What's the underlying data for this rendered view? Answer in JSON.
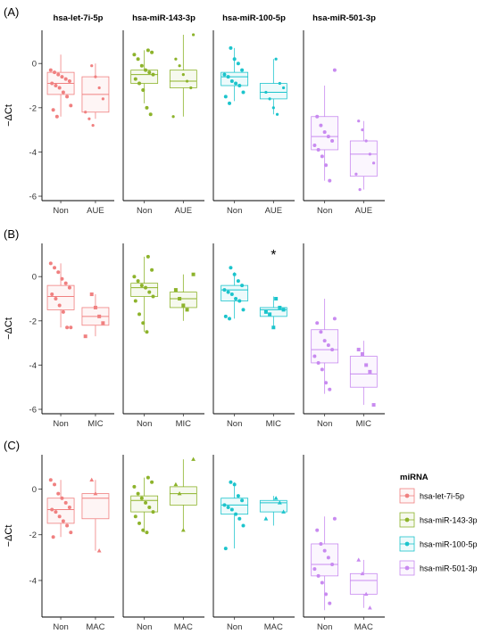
{
  "chart_data": {
    "type": "box",
    "facets": [
      "hsa-let-7i-5p",
      "hsa-miR-143-3p",
      "hsa-miR-100-5p",
      "hsa-miR-501-3p"
    ],
    "colors": {
      "hsa-let-7i-5p": "#F08080",
      "hsa-miR-143-3p": "#8DB32B",
      "hsa-miR-100-5p": "#1CC4CC",
      "hsa-miR-501-3p": "#C88AF0"
    },
    "ylabel": "−ΔCt",
    "legend": {
      "title": "miRNA",
      "entries": [
        "hsa-let-7i-5p",
        "hsa-miR-143-3p",
        "hsa-miR-100-5p",
        "hsa-miR-501-3p"
      ],
      "placement": "right"
    },
    "panels": [
      {
        "label": "(A)",
        "categories": [
          "Non",
          "AUE"
        ],
        "ylim": [
          -6.2,
          1.5
        ],
        "yticks": [
          0,
          -2,
          -4,
          -6
        ],
        "show_facet_titles": true,
        "groups": {
          "hsa-let-7i-5p": {
            "Non": {
              "stats": [
                -2.4,
                -1.4,
                -0.9,
                -0.4,
                0.4
              ],
              "points": [
                -0.3,
                -0.4,
                -0.5,
                -0.6,
                -0.7,
                -0.8,
                -0.9,
                -1.0,
                -1.1,
                -1.3,
                -1.5,
                -1.9,
                -2.1,
                -2.4
              ]
            },
            "AUE": {
              "stats": [
                -2.5,
                -2.2,
                -1.4,
                -0.6,
                0.0
              ],
              "points": [
                -0.1,
                -0.6,
                -1.1,
                -1.6,
                -2.2,
                -2.5,
                -2.8
              ]
            }
          },
          "hsa-miR-143-3p": {
            "Non": {
              "stats": [
                -1.8,
                -0.9,
                -0.5,
                -0.3,
                0.6
              ],
              "points": [
                0.6,
                0.5,
                0.4,
                0.2,
                -0.1,
                -0.3,
                -0.4,
                -0.5,
                -0.7,
                -0.9,
                -1.2,
                -2.0,
                -2.3
              ]
            },
            "AUE": {
              "stats": [
                -2.4,
                -1.1,
                -0.8,
                -0.3,
                1.3
              ],
              "points": [
                1.3,
                0.2,
                -0.1,
                -0.5,
                -0.8,
                -1.1,
                -2.4
              ]
            }
          },
          "hsa-miR-100-5p": {
            "Non": {
              "stats": [
                -1.7,
                -1.0,
                -0.6,
                -0.4,
                0.7
              ],
              "points": [
                0.7,
                0.2,
                0.0,
                -0.3,
                -0.5,
                -0.6,
                -0.8,
                -0.9,
                -1.0,
                -1.3,
                -1.5,
                -1.8
              ]
            },
            "AUE": {
              "stats": [
                -2.3,
                -1.6,
                -1.3,
                -0.9,
                0.2
              ],
              "points": [
                0.2,
                -0.9,
                -1.1,
                -1.3,
                -1.6,
                -2.0,
                -2.3
              ]
            }
          },
          "hsa-miR-501-3p": {
            "Non": {
              "stats": [
                -5.3,
                -3.9,
                -3.3,
                -2.4,
                -1.0
              ],
              "points": [
                -0.3,
                -2.4,
                -2.8,
                -3.1,
                -3.3,
                -3.5,
                -3.7,
                -3.9,
                -4.2,
                -4.6,
                -5.3
              ]
            },
            "AUE": {
              "stats": [
                -5.7,
                -5.1,
                -4.1,
                -3.5,
                -2.6
              ],
              "points": [
                -2.6,
                -3.0,
                -3.5,
                -4.1,
                -4.5,
                -5.0,
                -5.7
              ]
            }
          }
        }
      },
      {
        "label": "(B)",
        "categories": [
          "Non",
          "MIC"
        ],
        "ylim": [
          -6.2,
          1.5
        ],
        "yticks": [
          0,
          -2,
          -4,
          -6
        ],
        "show_facet_titles": false,
        "significance": {
          "facet": "hsa-miR-100-5p",
          "text": "*"
        },
        "groups": {
          "hsa-let-7i-5p": {
            "Non": {
              "stats": [
                -2.3,
                -1.5,
                -0.9,
                -0.4,
                0.6
              ],
              "points": [
                0.6,
                0.4,
                0.2,
                -0.1,
                -0.3,
                -0.5,
                -0.8,
                -1.0,
                -1.3,
                -1.6,
                -2.3,
                -2.3
              ]
            },
            "MIC": {
              "stats": [
                -2.7,
                -2.2,
                -1.8,
                -1.4,
                -0.8
              ],
              "points": [
                -0.8,
                -1.4,
                -1.8,
                -2.1,
                -2.7
              ]
            }
          },
          "hsa-miR-143-3p": {
            "Non": {
              "stats": [
                -2.5,
                -0.9,
                -0.5,
                -0.3,
                0.9
              ],
              "points": [
                0.9,
                0.3,
                0.0,
                -0.2,
                -0.4,
                -0.5,
                -0.7,
                -0.9,
                -1.1,
                -1.7,
                -2.1,
                -2.5
              ]
            },
            "MIC": {
              "stats": [
                -2.0,
                -1.4,
                -1.0,
                -0.7,
                0.1
              ],
              "points": [
                0.1,
                -0.6,
                -1.0,
                -1.3,
                -1.5
              ]
            }
          },
          "hsa-miR-100-5p": {
            "Non": {
              "stats": [
                -1.9,
                -1.1,
                -0.6,
                -0.4,
                0.2
              ],
              "points": [
                0.4,
                0.1,
                -0.2,
                -0.4,
                -0.6,
                -0.7,
                -0.8,
                -1.0,
                -1.1,
                -1.5,
                -1.8,
                -1.9
              ]
            },
            "MIC": {
              "stats": [
                -2.3,
                -1.8,
                -1.5,
                -1.4,
                -0.9
              ],
              "points": [
                -1.0,
                -1.4,
                -1.5,
                -1.6,
                -1.7,
                -2.3
              ]
            }
          },
          "hsa-miR-501-3p": {
            "Non": {
              "stats": [
                -5.3,
                -3.9,
                -3.3,
                -2.4,
                -1.0
              ],
              "points": [
                -1.9,
                -2.1,
                -2.5,
                -2.9,
                -3.1,
                -3.3,
                -3.6,
                -3.9,
                -4.2,
                -4.8,
                -5.1
              ]
            },
            "MIC": {
              "stats": [
                -5.8,
                -5.0,
                -4.4,
                -3.6,
                -2.9
              ],
              "points": [
                -3.3,
                -3.5,
                -4.0,
                -4.3,
                -5.8
              ]
            }
          }
        }
      },
      {
        "label": "(C)",
        "categories": [
          "Non",
          "MAC"
        ],
        "ylim": [
          -5.6,
          1.5
        ],
        "yticks": [
          0,
          -2,
          -4
        ],
        "show_facet_titles": false,
        "groups": {
          "hsa-let-7i-5p": {
            "Non": {
              "stats": [
                -2.1,
                -1.5,
                -0.9,
                -0.4,
                0.4
              ],
              "points": [
                0.4,
                0.2,
                -0.2,
                -0.4,
                -0.6,
                -0.8,
                -0.9,
                -1.0,
                -1.2,
                -1.4,
                -1.6,
                -1.9,
                -2.1
              ]
            },
            "MAC": {
              "stats": [
                -2.7,
                -1.3,
                -0.4,
                -0.2,
                0.4
              ],
              "points": [
                0.4,
                -0.2,
                -2.7
              ]
            }
          },
          "hsa-miR-143-3p": {
            "Non": {
              "stats": [
                -1.9,
                -1.0,
                -0.5,
                -0.3,
                0.5
              ],
              "points": [
                0.5,
                0.3,
                0.1,
                -0.2,
                -0.4,
                -0.6,
                -0.8,
                -1.0,
                -1.2,
                -1.5,
                -1.8,
                -1.9
              ]
            },
            "MAC": {
              "stats": [
                -1.8,
                -0.7,
                -0.2,
                0.1,
                1.3
              ],
              "points": [
                1.3,
                0.2,
                -0.2,
                -1.8
              ]
            }
          },
          "hsa-miR-100-5p": {
            "Non": {
              "stats": [
                -2.6,
                -1.1,
                -0.7,
                -0.4,
                0.3
              ],
              "points": [
                0.3,
                0.2,
                -0.3,
                -0.5,
                -0.7,
                -0.8,
                -0.9,
                -1.1,
                -1.3,
                -1.6,
                -2.6
              ]
            },
            "MAC": {
              "stats": [
                -1.6,
                -1.0,
                -0.6,
                -0.5,
                -0.3
              ],
              "points": [
                -0.4,
                -0.6,
                -1.0,
                -1.3
              ]
            }
          },
          "hsa-miR-501-3p": {
            "Non": {
              "stats": [
                -5.3,
                -3.8,
                -3.3,
                -2.4,
                -1.2
              ],
              "points": [
                -1.3,
                -1.8,
                -2.4,
                -2.7,
                -3.0,
                -3.3,
                -3.5,
                -3.8,
                -4.1,
                -4.6,
                -5.0
              ]
            },
            "MAC": {
              "stats": [
                -5.2,
                -4.6,
                -4.0,
                -3.7,
                -3.1
              ],
              "points": [
                -3.1,
                -3.7,
                -4.6,
                -5.2
              ]
            }
          }
        }
      }
    ]
  }
}
